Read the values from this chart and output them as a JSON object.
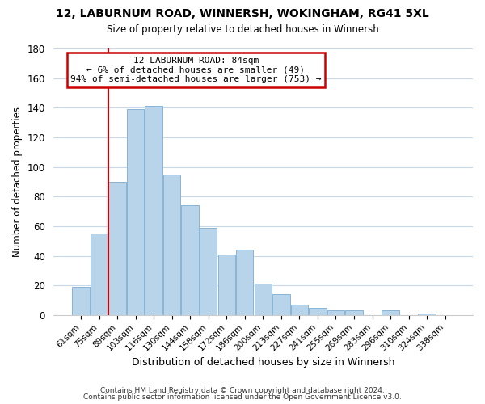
{
  "title": "12, LABURNUM ROAD, WINNERSH, WOKINGHAM, RG41 5XL",
  "subtitle": "Size of property relative to detached houses in Winnersh",
  "xlabel": "Distribution of detached houses by size in Winnersh",
  "ylabel": "Number of detached properties",
  "bar_labels": [
    "61sqm",
    "75sqm",
    "89sqm",
    "103sqm",
    "116sqm",
    "130sqm",
    "144sqm",
    "158sqm",
    "172sqm",
    "186sqm",
    "200sqm",
    "213sqm",
    "227sqm",
    "241sqm",
    "255sqm",
    "269sqm",
    "283sqm",
    "296sqm",
    "310sqm",
    "324sqm",
    "338sqm"
  ],
  "bar_values": [
    19,
    55,
    90,
    139,
    141,
    95,
    74,
    59,
    41,
    44,
    21,
    14,
    7,
    5,
    3,
    3,
    0,
    3,
    0,
    1,
    0
  ],
  "bar_color": "#b8d4ea",
  "bar_edge_color": "#8ab4d4",
  "ylim": [
    0,
    180
  ],
  "yticks": [
    0,
    20,
    40,
    60,
    80,
    100,
    120,
    140,
    160,
    180
  ],
  "property_line_color": "#cc0000",
  "annotation_title": "12 LABURNUM ROAD: 84sqm",
  "annotation_line1": "← 6% of detached houses are smaller (49)",
  "annotation_line2": "94% of semi-detached houses are larger (753) →",
  "annotation_box_color": "#ffffff",
  "annotation_box_edge": "#cc0000",
  "footer_line1": "Contains HM Land Registry data © Crown copyright and database right 2024.",
  "footer_line2": "Contains public sector information licensed under the Open Government Licence v3.0.",
  "background_color": "#ffffff",
  "grid_color": "#c8d8e8"
}
